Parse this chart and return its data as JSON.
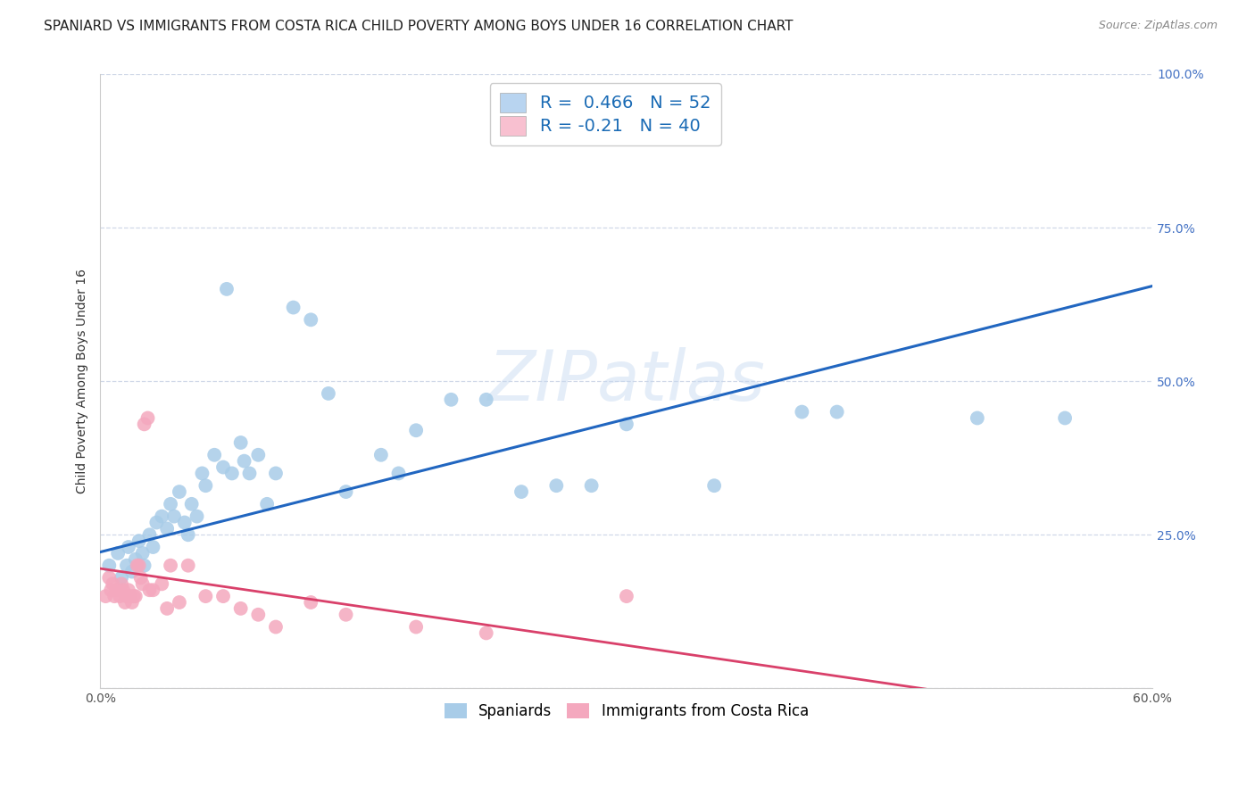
{
  "title": "SPANIARD VS IMMIGRANTS FROM COSTA RICA CHILD POVERTY AMONG BOYS UNDER 16 CORRELATION CHART",
  "source": "Source: ZipAtlas.com",
  "ylabel": "Child Poverty Among Boys Under 16",
  "watermark": "ZIPatlas",
  "xlim": [
    0.0,
    0.6
  ],
  "ylim": [
    0.0,
    1.0
  ],
  "xticks": [
    0.0,
    0.1,
    0.2,
    0.3,
    0.4,
    0.5,
    0.6
  ],
  "xticklabels": [
    "0.0%",
    "",
    "",
    "",
    "",
    "",
    "60.0%"
  ],
  "yticks_right": [
    0.25,
    0.5,
    0.75,
    1.0
  ],
  "yticklabels_right": [
    "25.0%",
    "50.0%",
    "75.0%",
    "100.0%"
  ],
  "r_spaniards": 0.466,
  "n_spaniards": 52,
  "r_costarica": -0.21,
  "n_costarica": 40,
  "color_spaniards": "#a8cce8",
  "color_costarica": "#f4a8be",
  "line_color_spaniards": "#2166c0",
  "line_color_costarica": "#d9406a",
  "legend_box_color_spaniards": "#b8d4f0",
  "legend_box_color_costarica": "#f8c0d0",
  "spaniards_x": [
    0.005,
    0.01,
    0.012,
    0.015,
    0.016,
    0.018,
    0.02,
    0.022,
    0.024,
    0.025,
    0.028,
    0.03,
    0.032,
    0.035,
    0.038,
    0.04,
    0.042,
    0.045,
    0.048,
    0.05,
    0.052,
    0.055,
    0.058,
    0.06,
    0.065,
    0.07,
    0.072,
    0.075,
    0.08,
    0.082,
    0.085,
    0.09,
    0.095,
    0.1,
    0.11,
    0.12,
    0.13,
    0.14,
    0.16,
    0.17,
    0.18,
    0.2,
    0.22,
    0.24,
    0.26,
    0.28,
    0.3,
    0.35,
    0.4,
    0.42,
    0.5,
    0.55
  ],
  "spaniards_y": [
    0.2,
    0.22,
    0.18,
    0.2,
    0.23,
    0.19,
    0.21,
    0.24,
    0.22,
    0.2,
    0.25,
    0.23,
    0.27,
    0.28,
    0.26,
    0.3,
    0.28,
    0.32,
    0.27,
    0.25,
    0.3,
    0.28,
    0.35,
    0.33,
    0.38,
    0.36,
    0.65,
    0.35,
    0.4,
    0.37,
    0.35,
    0.38,
    0.3,
    0.35,
    0.62,
    0.6,
    0.48,
    0.32,
    0.38,
    0.35,
    0.42,
    0.47,
    0.47,
    0.32,
    0.33,
    0.33,
    0.43,
    0.33,
    0.45,
    0.45,
    0.44,
    0.44
  ],
  "costarica_x": [
    0.003,
    0.005,
    0.006,
    0.007,
    0.008,
    0.009,
    0.01,
    0.011,
    0.012,
    0.013,
    0.014,
    0.015,
    0.016,
    0.017,
    0.018,
    0.019,
    0.02,
    0.021,
    0.022,
    0.023,
    0.024,
    0.025,
    0.027,
    0.028,
    0.03,
    0.035,
    0.038,
    0.04,
    0.045,
    0.05,
    0.06,
    0.07,
    0.08,
    0.09,
    0.1,
    0.12,
    0.14,
    0.18,
    0.22,
    0.3
  ],
  "costarica_y": [
    0.15,
    0.18,
    0.16,
    0.17,
    0.15,
    0.16,
    0.16,
    0.15,
    0.17,
    0.16,
    0.14,
    0.15,
    0.16,
    0.15,
    0.14,
    0.15,
    0.15,
    0.2,
    0.2,
    0.18,
    0.17,
    0.43,
    0.44,
    0.16,
    0.16,
    0.17,
    0.13,
    0.2,
    0.14,
    0.2,
    0.15,
    0.15,
    0.13,
    0.12,
    0.1,
    0.14,
    0.12,
    0.1,
    0.09,
    0.15
  ],
  "background_color": "#ffffff",
  "grid_color": "#d0d8e8",
  "title_fontsize": 11,
  "axis_label_fontsize": 10,
  "tick_fontsize": 10,
  "legend_fontsize": 13
}
